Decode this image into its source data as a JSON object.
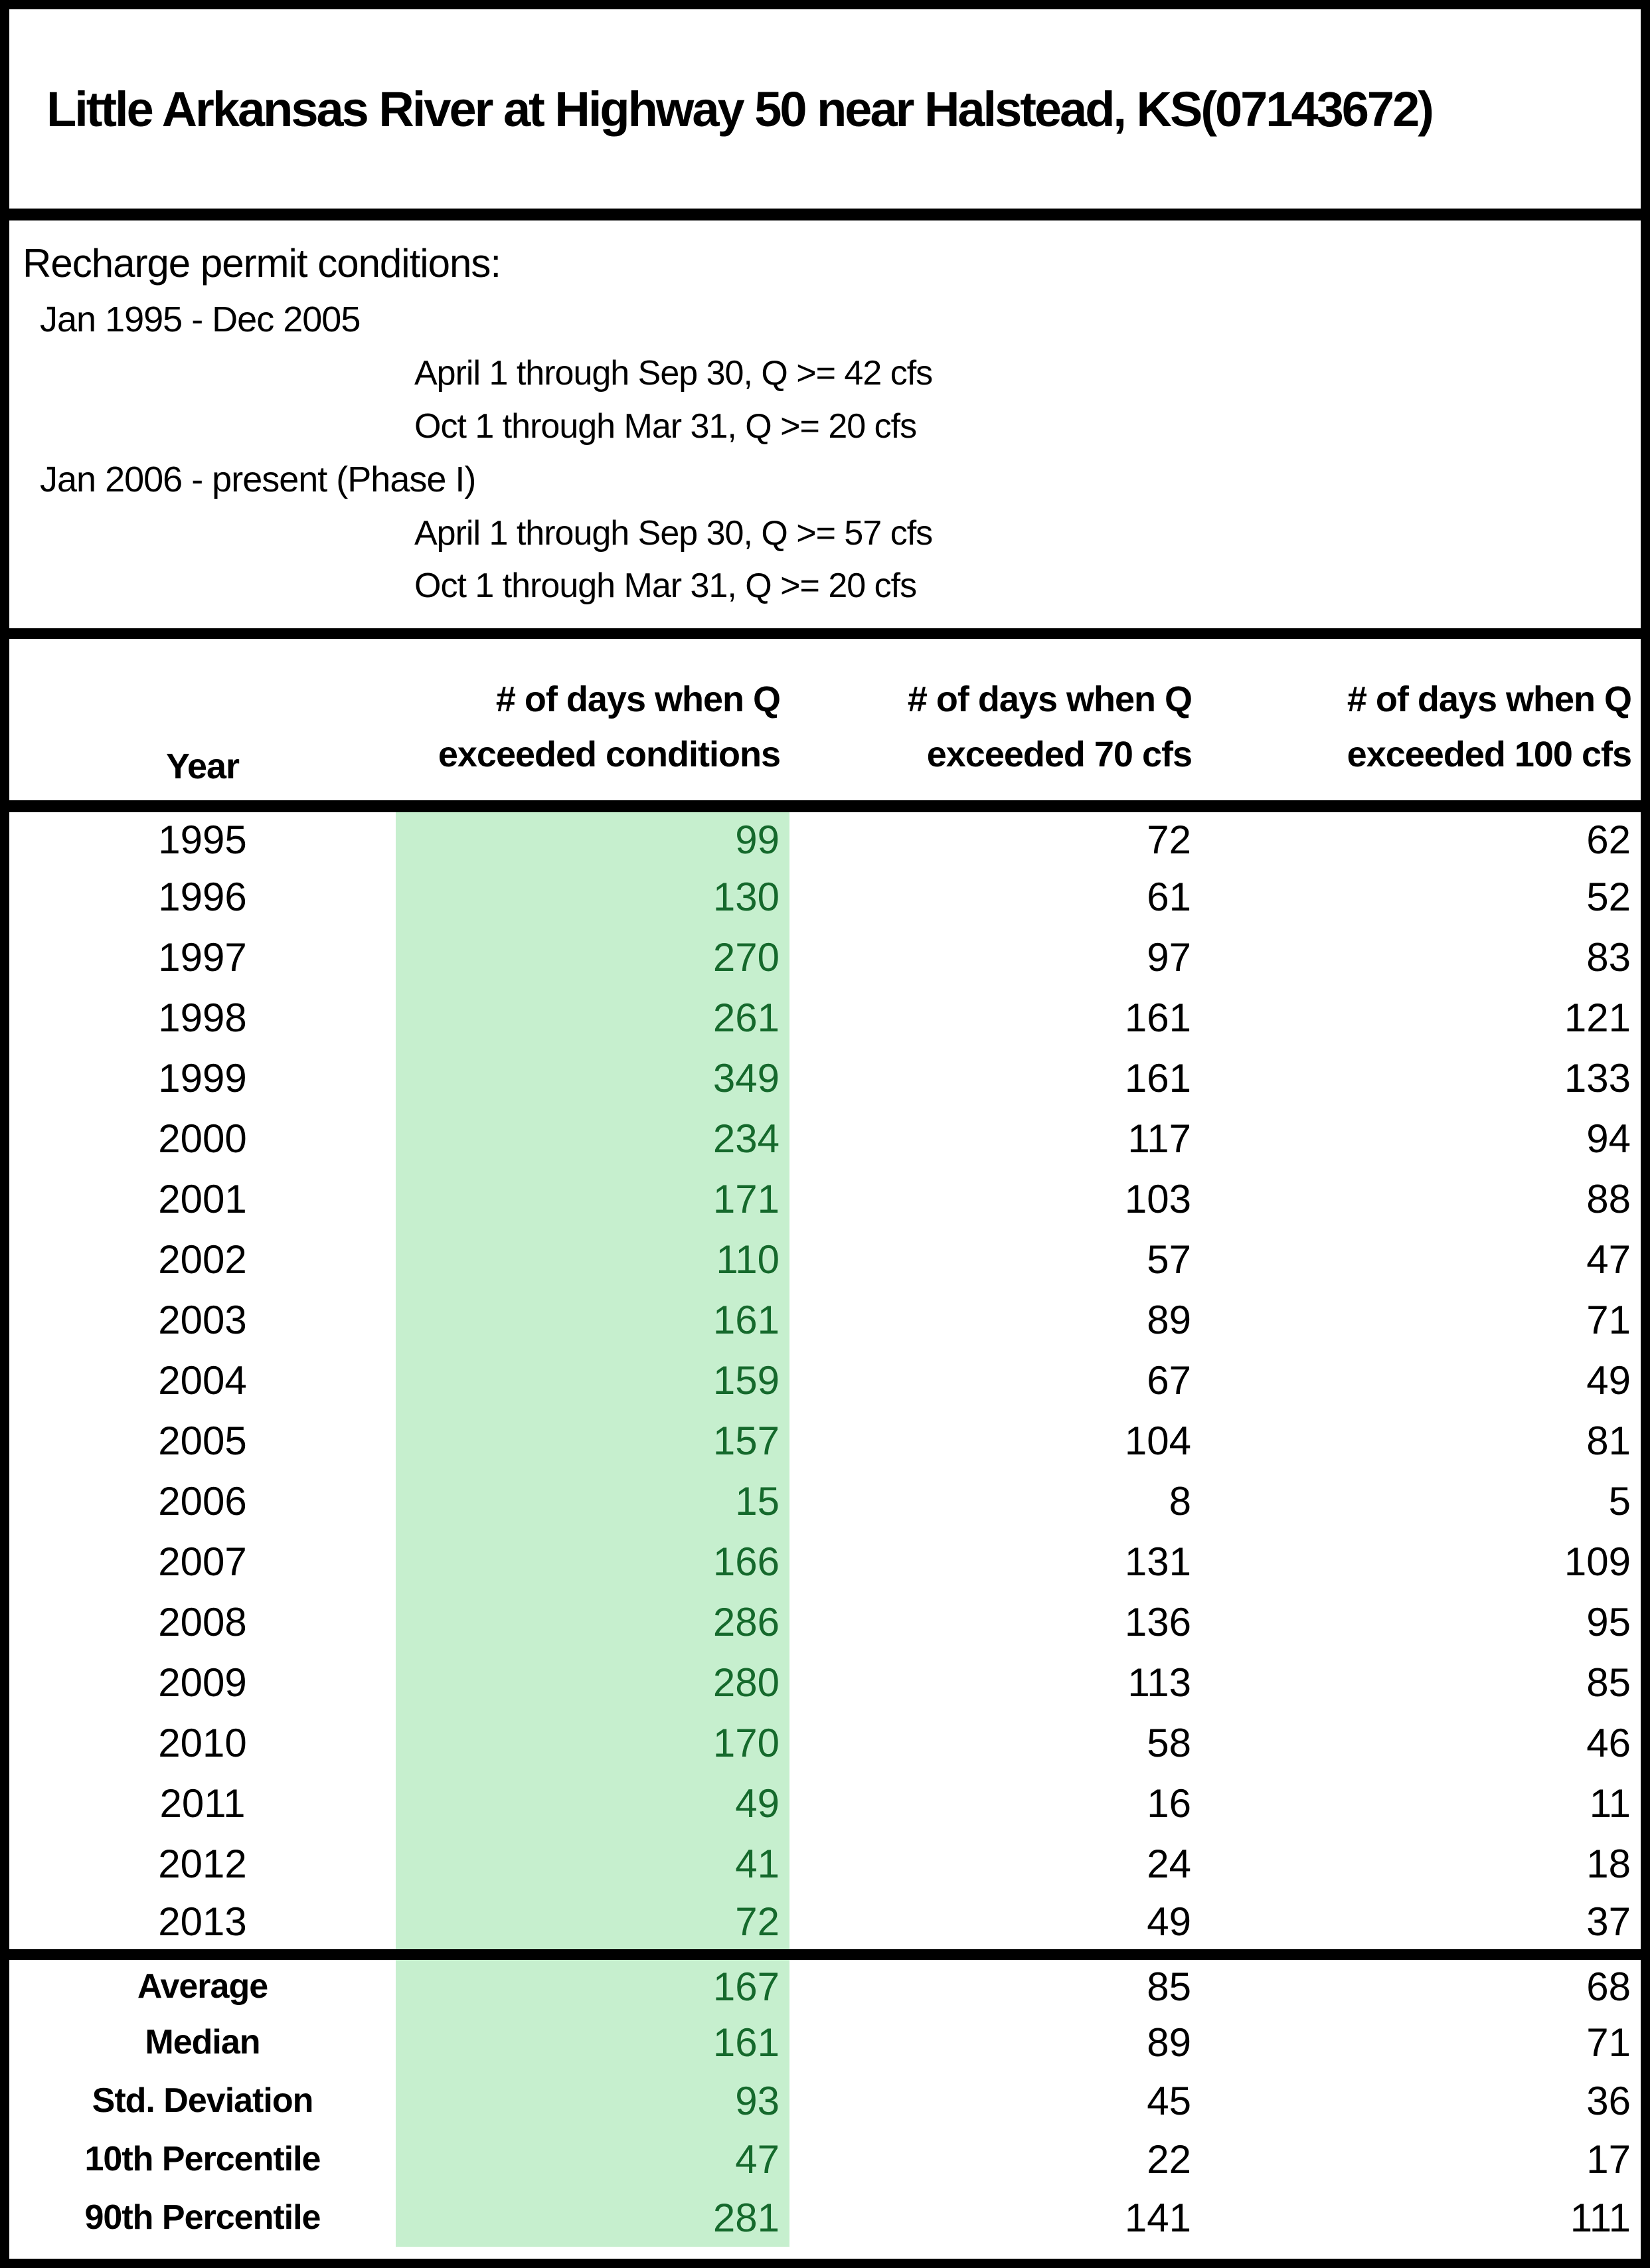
{
  "title": "Little Arkansas River at Highway 50 near Halstead, KS(07143672)",
  "permit": {
    "heading": "Recharge permit conditions:",
    "periods": [
      {
        "label": "Jan 1995 - Dec 2005",
        "conditions": [
          "April 1 through Sep 30, Q >= 42 cfs",
          "Oct 1 through Mar 31, Q >= 20 cfs"
        ]
      },
      {
        "label": "Jan 2006 - present (Phase I)",
        "conditions": [
          "April 1 through Sep 30, Q >= 57 cfs",
          "Oct 1 through Mar 31, Q >= 20 cfs"
        ]
      }
    ]
  },
  "table": {
    "columns": [
      "Year",
      "# of days when Q\nexceeded conditions",
      "# of days when Q\nexceeded 70 cfs",
      "# of days when Q\nexceeded 100 cfs"
    ],
    "rows": [
      {
        "year": "1995",
        "exceeded_conditions": 99,
        "exceeded_70cfs": 72,
        "exceeded_100cfs": 62
      },
      {
        "year": "1996",
        "exceeded_conditions": 130,
        "exceeded_70cfs": 61,
        "exceeded_100cfs": 52
      },
      {
        "year": "1997",
        "exceeded_conditions": 270,
        "exceeded_70cfs": 97,
        "exceeded_100cfs": 83
      },
      {
        "year": "1998",
        "exceeded_conditions": 261,
        "exceeded_70cfs": 161,
        "exceeded_100cfs": 121
      },
      {
        "year": "1999",
        "exceeded_conditions": 349,
        "exceeded_70cfs": 161,
        "exceeded_100cfs": 133
      },
      {
        "year": "2000",
        "exceeded_conditions": 234,
        "exceeded_70cfs": 117,
        "exceeded_100cfs": 94
      },
      {
        "year": "2001",
        "exceeded_conditions": 171,
        "exceeded_70cfs": 103,
        "exceeded_100cfs": 88
      },
      {
        "year": "2002",
        "exceeded_conditions": 110,
        "exceeded_70cfs": 57,
        "exceeded_100cfs": 47
      },
      {
        "year": "2003",
        "exceeded_conditions": 161,
        "exceeded_70cfs": 89,
        "exceeded_100cfs": 71
      },
      {
        "year": "2004",
        "exceeded_conditions": 159,
        "exceeded_70cfs": 67,
        "exceeded_100cfs": 49
      },
      {
        "year": "2005",
        "exceeded_conditions": 157,
        "exceeded_70cfs": 104,
        "exceeded_100cfs": 81
      },
      {
        "year": "2006",
        "exceeded_conditions": 15,
        "exceeded_70cfs": 8,
        "exceeded_100cfs": 5
      },
      {
        "year": "2007",
        "exceeded_conditions": 166,
        "exceeded_70cfs": 131,
        "exceeded_100cfs": 109
      },
      {
        "year": "2008",
        "exceeded_conditions": 286,
        "exceeded_70cfs": 136,
        "exceeded_100cfs": 95
      },
      {
        "year": "2009",
        "exceeded_conditions": 280,
        "exceeded_70cfs": 113,
        "exceeded_100cfs": 85
      },
      {
        "year": "2010",
        "exceeded_conditions": 170,
        "exceeded_70cfs": 58,
        "exceeded_100cfs": 46
      },
      {
        "year": "2011",
        "exceeded_conditions": 49,
        "exceeded_70cfs": 16,
        "exceeded_100cfs": 11
      },
      {
        "year": "2012",
        "exceeded_conditions": 41,
        "exceeded_70cfs": 24,
        "exceeded_100cfs": 18
      },
      {
        "year": "2013",
        "exceeded_conditions": 72,
        "exceeded_70cfs": 49,
        "exceeded_100cfs": 37
      }
    ],
    "summary": [
      {
        "label": "Average",
        "exceeded_conditions": 167,
        "exceeded_70cfs": 85,
        "exceeded_100cfs": 68
      },
      {
        "label": "Median",
        "exceeded_conditions": 161,
        "exceeded_70cfs": 89,
        "exceeded_100cfs": 71
      },
      {
        "label": "Std. Deviation",
        "exceeded_conditions": 93,
        "exceeded_70cfs": 45,
        "exceeded_100cfs": 36
      },
      {
        "label": "10th Percentile",
        "exceeded_conditions": 47,
        "exceeded_70cfs": 22,
        "exceeded_100cfs": 17
      },
      {
        "label": "90th Percentile",
        "exceeded_conditions": 281,
        "exceeded_70cfs": 141,
        "exceeded_100cfs": 111
      }
    ]
  },
  "colors": {
    "highlight_fill": "#C6EFCE",
    "highlight_text": "#15692C",
    "border": "#000000"
  },
  "chart_data": {
    "type": "table",
    "title": "Little Arkansas River at Highway 50 near Halstead, KS(07143672)",
    "columns": [
      "Year",
      "# of days when Q exceeded conditions",
      "# of days when Q exceeded 70 cfs",
      "# of days when Q exceeded 100 cfs"
    ],
    "rows": [
      [
        1995,
        99,
        72,
        62
      ],
      [
        1996,
        130,
        61,
        52
      ],
      [
        1997,
        270,
        97,
        83
      ],
      [
        1998,
        261,
        161,
        121
      ],
      [
        1999,
        349,
        161,
        133
      ],
      [
        2000,
        234,
        117,
        94
      ],
      [
        2001,
        171,
        103,
        88
      ],
      [
        2002,
        110,
        57,
        47
      ],
      [
        2003,
        161,
        89,
        71
      ],
      [
        2004,
        159,
        67,
        49
      ],
      [
        2005,
        157,
        104,
        81
      ],
      [
        2006,
        15,
        8,
        5
      ],
      [
        2007,
        166,
        131,
        109
      ],
      [
        2008,
        286,
        136,
        95
      ],
      [
        2009,
        280,
        113,
        85
      ],
      [
        2010,
        170,
        58,
        46
      ],
      [
        2011,
        49,
        16,
        11
      ],
      [
        2012,
        41,
        24,
        18
      ],
      [
        2013,
        72,
        49,
        37
      ]
    ],
    "summary_rows": [
      [
        "Average",
        167,
        85,
        68
      ],
      [
        "Median",
        161,
        89,
        71
      ],
      [
        "Std. Deviation",
        93,
        45,
        36
      ],
      [
        "10th Percentile",
        47,
        22,
        17
      ],
      [
        "90th Percentile",
        281,
        141,
        111
      ]
    ]
  }
}
